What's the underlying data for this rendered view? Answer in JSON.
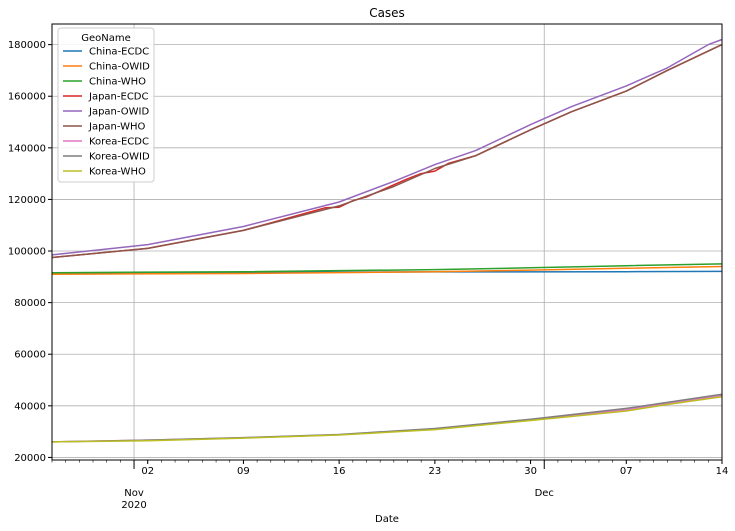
{
  "chart_data": {
    "type": "line",
    "title": "Cases",
    "xlabel": "Date",
    "ylabel": "",
    "x_range": [
      "2020-10-26",
      "2020-12-14"
    ],
    "ylim": [
      19000,
      188000
    ],
    "grid": true,
    "legend": {
      "title": "GeoName",
      "placement": "top-left"
    },
    "x_ticks": [
      {
        "date": "2020-11-02",
        "label": "02"
      },
      {
        "date": "2020-11-09",
        "label": "09"
      },
      {
        "date": "2020-11-16",
        "label": "16"
      },
      {
        "date": "2020-11-23",
        "label": "23"
      },
      {
        "date": "2020-11-30",
        "label": "30"
      },
      {
        "date": "2020-12-07",
        "label": "07"
      },
      {
        "date": "2020-12-14",
        "label": "14"
      }
    ],
    "x_month_labels": [
      {
        "date": "2020-11-01",
        "text": "Nov",
        "year": "2020"
      },
      {
        "date": "2020-12-01",
        "text": "Dec",
        "year": ""
      }
    ],
    "x_grid_dates": [
      "2020-11-01",
      "2020-12-01"
    ],
    "y_ticks": [
      20000,
      40000,
      60000,
      80000,
      100000,
      120000,
      140000,
      160000,
      180000
    ],
    "series": [
      {
        "name": "China-ECDC",
        "color": "#1f77b4",
        "points": [
          [
            "2020-10-26",
            91500
          ],
          [
            "2020-11-09",
            91700
          ],
          [
            "2020-11-23",
            91900
          ],
          [
            "2020-12-07",
            92000
          ],
          [
            "2020-12-14",
            92100
          ]
        ]
      },
      {
        "name": "China-OWID",
        "color": "#ff7f0e",
        "points": [
          [
            "2020-10-26",
            91000
          ],
          [
            "2020-11-09",
            91300
          ],
          [
            "2020-11-23",
            92000
          ],
          [
            "2020-11-30",
            92600
          ],
          [
            "2020-12-07",
            93300
          ],
          [
            "2020-12-14",
            94000
          ]
        ]
      },
      {
        "name": "China-WHO",
        "color": "#2ca02c",
        "points": [
          [
            "2020-10-26",
            91600
          ],
          [
            "2020-11-09",
            92000
          ],
          [
            "2020-11-23",
            92800
          ],
          [
            "2020-11-30",
            93500
          ],
          [
            "2020-12-07",
            94300
          ],
          [
            "2020-12-14",
            95000
          ]
        ]
      },
      {
        "name": "Japan-ECDC",
        "color": "#d62728",
        "points": [
          [
            "2020-10-26",
            97500
          ],
          [
            "2020-11-02",
            101000
          ],
          [
            "2020-11-09",
            108000
          ],
          [
            "2020-11-15",
            116800
          ],
          [
            "2020-11-16",
            117000
          ],
          [
            "2020-11-17",
            119500
          ],
          [
            "2020-11-18",
            121000
          ],
          [
            "2020-11-21",
            128000
          ],
          [
            "2020-11-22",
            130000
          ],
          [
            "2020-11-23",
            131000
          ],
          [
            "2020-11-24",
            134000
          ],
          [
            "2020-11-26",
            137000
          ],
          [
            "2020-11-30",
            147000
          ],
          [
            "2020-12-03",
            154000
          ],
          [
            "2020-12-07",
            162000
          ],
          [
            "2020-12-10",
            170000
          ],
          [
            "2020-12-14",
            180000
          ]
        ]
      },
      {
        "name": "Japan-OWID",
        "color": "#9467bd",
        "points": [
          [
            "2020-10-26",
            98500
          ],
          [
            "2020-11-02",
            102500
          ],
          [
            "2020-11-09",
            109500
          ],
          [
            "2020-11-16",
            119000
          ],
          [
            "2020-11-20",
            127000
          ],
          [
            "2020-11-23",
            133500
          ],
          [
            "2020-11-26",
            139000
          ],
          [
            "2020-11-30",
            149000
          ],
          [
            "2020-12-03",
            156000
          ],
          [
            "2020-12-07",
            164000
          ],
          [
            "2020-12-10",
            171000
          ],
          [
            "2020-12-13",
            180000
          ],
          [
            "2020-12-14",
            182000
          ]
        ]
      },
      {
        "name": "Japan-WHO",
        "color": "#8c564b",
        "points": [
          [
            "2020-10-26",
            97500
          ],
          [
            "2020-11-02",
            101000
          ],
          [
            "2020-11-09",
            108000
          ],
          [
            "2020-11-16",
            117500
          ],
          [
            "2020-11-20",
            125000
          ],
          [
            "2020-11-23",
            132000
          ],
          [
            "2020-11-26",
            137000
          ],
          [
            "2020-11-30",
            147000
          ],
          [
            "2020-12-03",
            154000
          ],
          [
            "2020-12-07",
            162000
          ],
          [
            "2020-12-10",
            170000
          ],
          [
            "2020-12-14",
            180000
          ]
        ]
      },
      {
        "name": "Korea-ECDC",
        "color": "#e377c2",
        "points": [
          [
            "2020-10-26",
            26000
          ],
          [
            "2020-11-02",
            26700
          ],
          [
            "2020-11-09",
            27600
          ],
          [
            "2020-11-16",
            28800
          ],
          [
            "2020-11-23",
            31000
          ],
          [
            "2020-11-30",
            34500
          ],
          [
            "2020-12-07",
            38500
          ],
          [
            "2020-12-14",
            44000
          ]
        ]
      },
      {
        "name": "Korea-OWID",
        "color": "#7f7f7f",
        "points": [
          [
            "2020-10-26",
            26000
          ],
          [
            "2020-11-02",
            26700
          ],
          [
            "2020-11-09",
            27700
          ],
          [
            "2020-11-16",
            28900
          ],
          [
            "2020-11-23",
            31200
          ],
          [
            "2020-11-30",
            34800
          ],
          [
            "2020-12-07",
            39000
          ],
          [
            "2020-12-14",
            44500
          ]
        ]
      },
      {
        "name": "Korea-WHO",
        "color": "#bcbd22",
        "points": [
          [
            "2020-10-26",
            26000
          ],
          [
            "2020-11-02",
            26500
          ],
          [
            "2020-11-09",
            27500
          ],
          [
            "2020-11-16",
            28700
          ],
          [
            "2020-11-23",
            30800
          ],
          [
            "2020-11-30",
            34300
          ],
          [
            "2020-12-07",
            38000
          ],
          [
            "2020-12-10",
            40500
          ],
          [
            "2020-12-14",
            43500
          ]
        ]
      }
    ]
  }
}
